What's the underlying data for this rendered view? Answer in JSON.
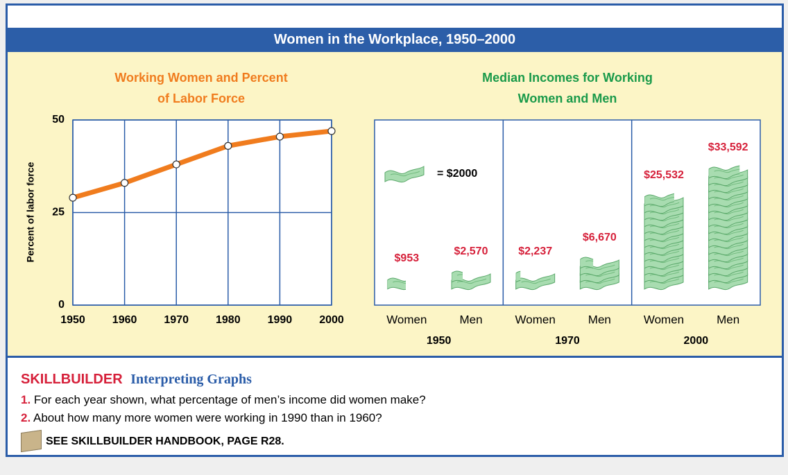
{
  "header": {
    "title": "Women in the Workplace, 1950–2000"
  },
  "chart_data": [
    {
      "type": "line",
      "title": "Working Women and Percent of Labor Force",
      "ylabel": "Percent of labor force",
      "x": [
        1950,
        1960,
        1970,
        1980,
        1990,
        2000
      ],
      "xlim": [
        1950,
        2000
      ],
      "xticks": [
        1950,
        1960,
        1970,
        1980,
        1990,
        2000
      ],
      "values": [
        29,
        33,
        38,
        43,
        45.5,
        47
      ],
      "ylim": [
        0,
        50
      ],
      "yticks": [
        0,
        25,
        50
      ],
      "color": "#f07c1e",
      "grid": true
    },
    {
      "type": "pictograph",
      "title": "Median Incomes for Working Women and Men",
      "groups": [
        "1950",
        "1970",
        "2000"
      ],
      "categories": [
        "Women",
        "Men",
        "Women",
        "Men",
        "Women",
        "Men"
      ],
      "values": [
        953,
        2570,
        2237,
        6670,
        25532,
        33592
      ],
      "value_labels": [
        "$953",
        "$2,570",
        "$2,237",
        "$6,670",
        "$25,532",
        "$33,592"
      ],
      "unit": {
        "value": 2000,
        "label": "= $2000"
      },
      "color": "#a8dcb0"
    }
  ],
  "skillbuilder": {
    "label": "SKILLBUILDER",
    "title": "Interpreting Graphs",
    "questions": [
      {
        "number": "1.",
        "text": "For each year shown, what percentage of men’s income did women make?"
      },
      {
        "number": "2.",
        "text": "About how many more women were working in 1990 than in 1960?"
      }
    ],
    "reference": "SEE SKILLBUILDER HANDBOOK, PAGE R28."
  }
}
